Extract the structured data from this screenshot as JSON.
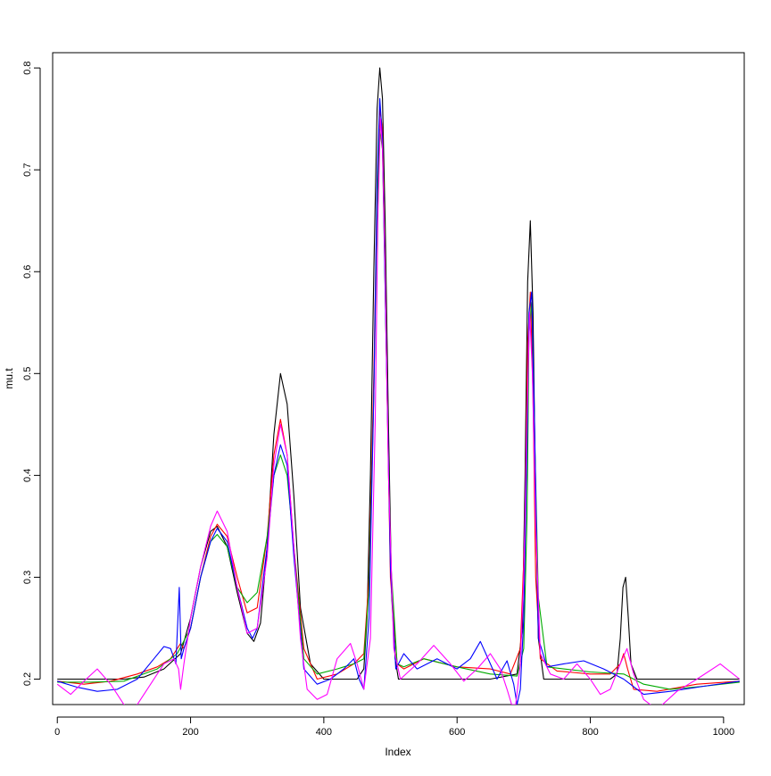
{
  "chart_data": {
    "type": "line",
    "title": "",
    "xlabel": "Index",
    "ylabel": "mu.t",
    "xlim": [
      -7,
      1031
    ],
    "ylim": [
      0.175,
      0.815
    ],
    "xticks": [
      0,
      200,
      400,
      600,
      800,
      1000
    ],
    "yticks": [
      0.2,
      0.3,
      0.4,
      0.5,
      0.6,
      0.7,
      0.8
    ],
    "xtick_labels": [
      "0",
      "200",
      "400",
      "600",
      "800",
      "1000"
    ],
    "ytick_labels": [
      "0.2",
      "0.3",
      "0.4",
      "0.5",
      "0.6",
      "0.7",
      "0.8"
    ],
    "grid": false,
    "legend": "none",
    "series": [
      {
        "color": "#000000",
        "x": [
          0,
          50,
          100,
          130,
          160,
          185,
          200,
          215,
          230,
          240,
          255,
          270,
          285,
          295,
          305,
          315,
          325,
          335,
          345,
          355,
          365,
          380,
          400,
          430,
          450,
          460,
          465,
          470,
          475,
          480,
          484,
          488,
          492,
          497,
          502,
          507,
          512,
          520,
          560,
          650,
          690,
          698,
          702,
          706,
          710,
          714,
          718,
          722,
          730,
          760,
          800,
          830,
          840,
          845,
          849,
          853,
          857,
          861,
          870,
          950,
          1024
        ],
        "y": [
          0.2,
          0.2,
          0.2,
          0.202,
          0.21,
          0.225,
          0.26,
          0.31,
          0.345,
          0.35,
          0.33,
          0.285,
          0.245,
          0.237,
          0.255,
          0.33,
          0.44,
          0.5,
          0.47,
          0.38,
          0.27,
          0.215,
          0.2,
          0.2,
          0.2,
          0.21,
          0.26,
          0.4,
          0.6,
          0.76,
          0.8,
          0.77,
          0.65,
          0.45,
          0.28,
          0.22,
          0.2,
          0.2,
          0.2,
          0.2,
          0.205,
          0.25,
          0.4,
          0.59,
          0.65,
          0.56,
          0.37,
          0.24,
          0.2,
          0.2,
          0.2,
          0.2,
          0.205,
          0.24,
          0.29,
          0.3,
          0.26,
          0.215,
          0.2,
          0.2,
          0.2
        ]
      },
      {
        "color": "#ff0000",
        "x": [
          0,
          40,
          80,
          120,
          150,
          170,
          185,
          190,
          200,
          215,
          230,
          240,
          255,
          270,
          285,
          300,
          315,
          325,
          335,
          345,
          355,
          370,
          390,
          420,
          445,
          460,
          468,
          475,
          480,
          484,
          488,
          493,
          500,
          510,
          520,
          550,
          600,
          650,
          680,
          695,
          702,
          706,
          710,
          714,
          718,
          725,
          750,
          800,
          830,
          845,
          850,
          856,
          865,
          900,
          960,
          1024
        ],
        "y": [
          0.198,
          0.195,
          0.198,
          0.205,
          0.212,
          0.22,
          0.235,
          0.23,
          0.25,
          0.3,
          0.34,
          0.352,
          0.34,
          0.3,
          0.265,
          0.27,
          0.34,
          0.42,
          0.455,
          0.42,
          0.33,
          0.23,
          0.2,
          0.205,
          0.215,
          0.225,
          0.3,
          0.5,
          0.68,
          0.76,
          0.74,
          0.55,
          0.3,
          0.215,
          0.21,
          0.22,
          0.212,
          0.21,
          0.205,
          0.23,
          0.35,
          0.53,
          0.58,
          0.48,
          0.3,
          0.22,
          0.208,
          0.205,
          0.205,
          0.215,
          0.225,
          0.21,
          0.19,
          0.188,
          0.195,
          0.198
        ]
      },
      {
        "color": "#00aa00",
        "x": [
          0,
          50,
          100,
          150,
          180,
          200,
          215,
          230,
          240,
          255,
          270,
          285,
          300,
          315,
          325,
          335,
          345,
          355,
          370,
          390,
          420,
          445,
          460,
          468,
          475,
          480,
          484,
          488,
          493,
          500,
          510,
          520,
          550,
          600,
          650,
          690,
          700,
          705,
          708,
          712,
          716,
          722,
          735,
          760,
          800,
          850,
          880,
          920,
          970,
          1024
        ],
        "y": [
          0.197,
          0.197,
          0.198,
          0.21,
          0.225,
          0.25,
          0.3,
          0.335,
          0.342,
          0.33,
          0.29,
          0.275,
          0.285,
          0.34,
          0.4,
          0.42,
          0.4,
          0.33,
          0.22,
          0.205,
          0.21,
          0.215,
          0.22,
          0.29,
          0.48,
          0.66,
          0.74,
          0.72,
          0.55,
          0.32,
          0.215,
          0.212,
          0.22,
          0.212,
          0.205,
          0.203,
          0.23,
          0.36,
          0.54,
          0.57,
          0.45,
          0.28,
          0.212,
          0.21,
          0.207,
          0.205,
          0.195,
          0.19,
          0.193,
          0.197
        ]
      },
      {
        "color": "#0000ff",
        "x": [
          0,
          30,
          60,
          90,
          120,
          145,
          160,
          170,
          178,
          183,
          186,
          190,
          200,
          215,
          230,
          240,
          255,
          270,
          285,
          293,
          300,
          315,
          325,
          335,
          345,
          355,
          370,
          390,
          410,
          430,
          445,
          453,
          460,
          468,
          475,
          480,
          484,
          488,
          493,
          500,
          508,
          520,
          540,
          570,
          600,
          620,
          635,
          650,
          660,
          668,
          675,
          685,
          690,
          695,
          700,
          705,
          708,
          712,
          716,
          722,
          735,
          760,
          790,
          820,
          850,
          880,
          920,
          970,
          1024
        ],
        "y": [
          0.198,
          0.192,
          0.188,
          0.19,
          0.2,
          0.22,
          0.232,
          0.23,
          0.215,
          0.29,
          0.22,
          0.23,
          0.25,
          0.3,
          0.335,
          0.348,
          0.335,
          0.29,
          0.25,
          0.24,
          0.25,
          0.33,
          0.4,
          0.43,
          0.41,
          0.32,
          0.21,
          0.195,
          0.2,
          0.21,
          0.22,
          0.2,
          0.19,
          0.26,
          0.48,
          0.69,
          0.77,
          0.73,
          0.55,
          0.31,
          0.21,
          0.225,
          0.21,
          0.22,
          0.21,
          0.22,
          0.237,
          0.215,
          0.2,
          0.21,
          0.218,
          0.195,
          0.175,
          0.19,
          0.26,
          0.43,
          0.56,
          0.58,
          0.46,
          0.24,
          0.212,
          0.215,
          0.218,
          0.21,
          0.2,
          0.185,
          0.188,
          0.193,
          0.198
        ]
      },
      {
        "color": "#ff00ff",
        "x": [
          0,
          20,
          40,
          60,
          80,
          100,
          115,
          135,
          160,
          175,
          182,
          185,
          190,
          200,
          215,
          230,
          240,
          255,
          270,
          285,
          300,
          315,
          325,
          335,
          345,
          355,
          365,
          375,
          390,
          405,
          420,
          440,
          450,
          460,
          470,
          477,
          481,
          485,
          488,
          492,
          497,
          505,
          515,
          540,
          565,
          590,
          610,
          630,
          650,
          665,
          675,
          682,
          688,
          695,
          700,
          705,
          709,
          713,
          718,
          725,
          740,
          760,
          780,
          800,
          815,
          830,
          845,
          855,
          865,
          880,
          900,
          930,
          960,
          995,
          1024
        ],
        "y": [
          0.195,
          0.185,
          0.198,
          0.21,
          0.195,
          0.175,
          0.17,
          0.19,
          0.215,
          0.22,
          0.21,
          0.19,
          0.215,
          0.26,
          0.31,
          0.35,
          0.365,
          0.345,
          0.29,
          0.245,
          0.25,
          0.32,
          0.41,
          0.45,
          0.42,
          0.33,
          0.24,
          0.19,
          0.18,
          0.185,
          0.22,
          0.235,
          0.215,
          0.19,
          0.24,
          0.45,
          0.65,
          0.75,
          0.72,
          0.6,
          0.4,
          0.23,
          0.2,
          0.215,
          0.233,
          0.215,
          0.198,
          0.21,
          0.225,
          0.21,
          0.19,
          0.175,
          0.175,
          0.215,
          0.3,
          0.46,
          0.56,
          0.5,
          0.35,
          0.225,
          0.205,
          0.2,
          0.215,
          0.2,
          0.185,
          0.19,
          0.215,
          0.23,
          0.205,
          0.18,
          0.17,
          0.188,
          0.2,
          0.215,
          0.2
        ]
      }
    ]
  }
}
